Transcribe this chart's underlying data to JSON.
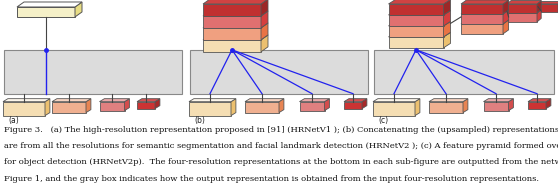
{
  "figsize": [
    5.58,
    1.93
  ],
  "dpi": 100,
  "bg_color": "#ffffff",
  "caption_lines": [
    "Figure 3.   (a) The high-resolution representation proposed in [91] (HRNetV1 ); (b) Concatenating the (upsampled) representations that",
    "are from all the resolutions for semantic segmentation and facial landmark detection (HRNetV2 ); (c) A feature pyramid formed over (b)",
    "for object detection (HRNetV2p).  The four-resolution representations at the bottom in each sub-figure are outputted from the network in",
    "Figure 1, and the gray box indicates how the output representation is obtained from the input four-resolution representations."
  ],
  "caption_fontsize": 6.0,
  "stack_colors_top_to_bottom": [
    "#c03030",
    "#e07070",
    "#f0a080",
    "#f5deb3"
  ],
  "top_block_a_color": "#f5f0c8",
  "bottom_block_colors": [
    "#f5deb3",
    "#f0b090",
    "#e08080",
    "#cc3333"
  ],
  "gray_box_color": "#dcdcdc",
  "gray_box_edge": "#888888",
  "blue_color": "#2222ee",
  "connector_color": "#444444"
}
